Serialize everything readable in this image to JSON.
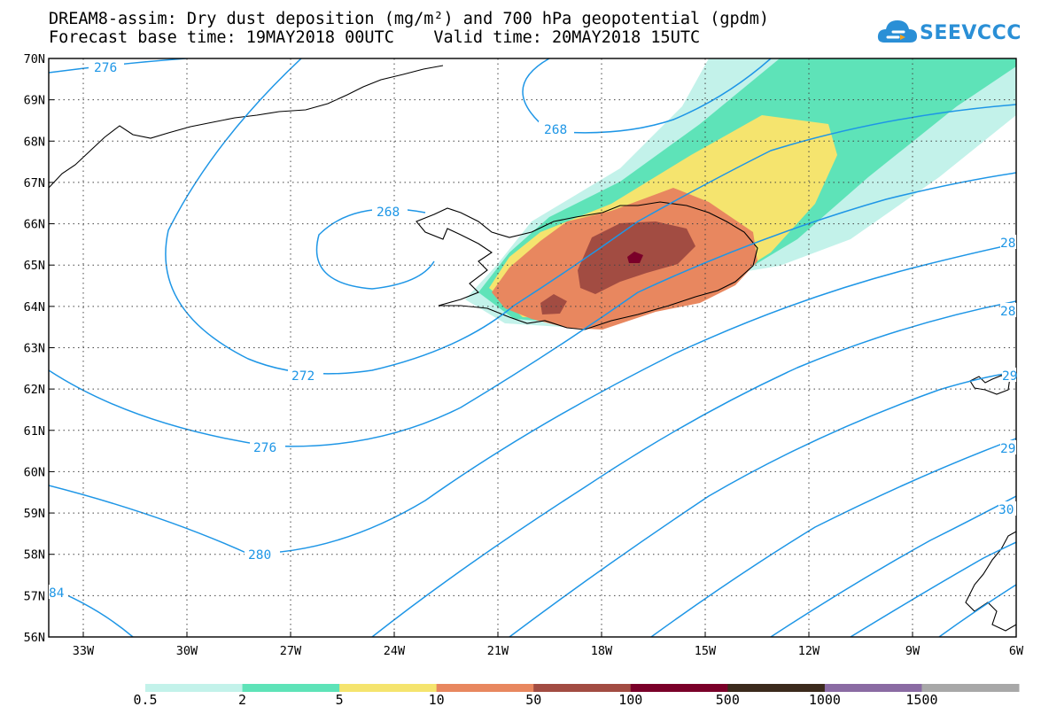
{
  "title": {
    "line1": "DREAM8-assim: Dry dust deposition (mg/m²) and 700 hPa geopotential (gpdm)",
    "line2": "Forecast base time: 19MAY2018 00UTC    Valid time: 20MAY2018 15UTC"
  },
  "logo": {
    "text": "SEEVCCC"
  },
  "map": {
    "lat_labels": [
      "70N",
      "69N",
      "68N",
      "67N",
      "66N",
      "65N",
      "64N",
      "63N",
      "62N",
      "61N",
      "60N",
      "59N",
      "58N",
      "57N",
      "56N"
    ],
    "lon_labels": [
      "33W",
      "30W",
      "27W",
      "24W",
      "21W",
      "18W",
      "15W",
      "12W",
      "9W",
      "6W"
    ],
    "contour_labels": [
      "276",
      "268",
      "268",
      "272",
      "276",
      "280",
      "84",
      "28",
      "28",
      "29",
      "29",
      "30"
    ]
  },
  "legend": {
    "labels": [
      "0.5",
      "2",
      "5",
      "10",
      "50",
      "100",
      "500",
      "1000",
      "1500"
    ],
    "colors": [
      "#c3f2ea",
      "#5ee3b8",
      "#f5e46e",
      "#e8875f",
      "#a24c42",
      "#7a0029",
      "#3b2a1c",
      "#8a6ba3",
      "#a8a8a8"
    ]
  },
  "colors": {
    "contour": "#1e96e6",
    "coast": "#000000"
  }
}
